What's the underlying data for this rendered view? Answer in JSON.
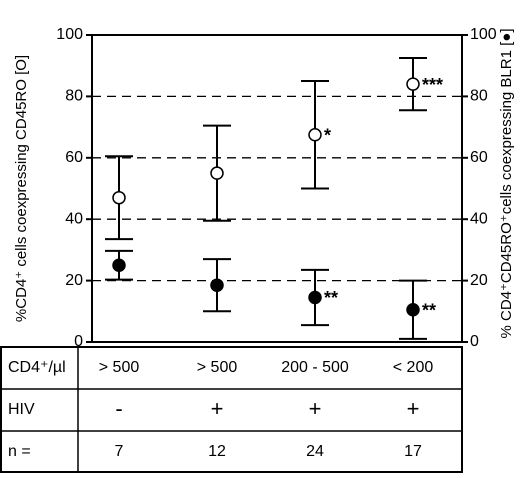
{
  "chart_data": {
    "type": "scatter",
    "ylabel": "%CD4⁺ cells coexpressing CD45RO [O]",
    "y2label": "% CD4⁺CD45RO⁺cells coexpressing BLR1 [●]",
    "categories": [
      "> 500",
      "> 500",
      "200 - 500",
      "< 200"
    ],
    "ylim": [
      0,
      100
    ],
    "yticks": [
      0,
      20,
      40,
      60,
      80,
      100
    ],
    "y2lim": [
      0,
      100
    ],
    "y2ticks": [
      0,
      20,
      40,
      60,
      80,
      100
    ],
    "grid": true,
    "series": [
      {
        "name": "CD45RO",
        "marker": "open",
        "color": "#000000",
        "values": [
          47,
          55,
          67.5,
          84
        ],
        "errors": [
          13.5,
          15.5,
          17.5,
          8.5
        ],
        "annotations": [
          null,
          null,
          "*",
          "***"
        ]
      },
      {
        "name": "BLR1",
        "marker": "filled",
        "axis": "y2",
        "color": "#000000",
        "values": [
          25,
          18.5,
          14.5,
          10.5
        ],
        "errors": [
          4.7,
          8.5,
          9,
          9.5
        ],
        "annotations": [
          null,
          null,
          "**",
          "**"
        ]
      }
    ],
    "table": {
      "rows": [
        [
          "CD4⁺/µl",
          "> 500",
          "> 500",
          "200 - 500",
          "< 200"
        ],
        [
          "HIV",
          "-",
          "+",
          "+",
          "+"
        ],
        [
          "n =",
          "7",
          "12",
          "24",
          "17"
        ]
      ]
    }
  }
}
